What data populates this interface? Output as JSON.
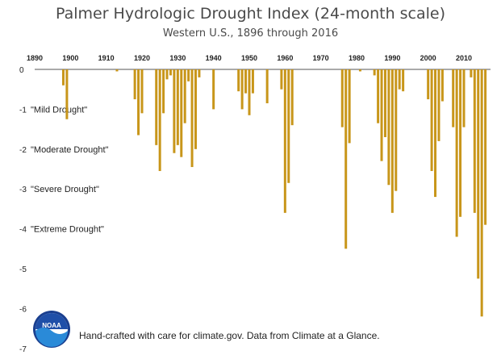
{
  "chart_data": {
    "type": "bar",
    "title": "Palmer Hydrologic Drought Index (24-month scale)",
    "subtitle": "Western U.S., 1896 through 2016",
    "xlabel": "",
    "ylabel": "",
    "xlim": [
      1890,
      2016
    ],
    "ylim": [
      -7,
      0
    ],
    "x_ticks": [
      "1890",
      "1900",
      "1910",
      "1920",
      "1930",
      "1940",
      "1950",
      "1960",
      "1970",
      "1980",
      "1990",
      "2000",
      "2010"
    ],
    "y_ticks": [
      "0",
      "-1",
      "-2",
      "-3",
      "-4",
      "-5",
      "-6",
      "-7"
    ],
    "grid": false,
    "bar_color": "#c8961a",
    "annotations": [
      {
        "text": "\"Mild Drought\"",
        "y": -1
      },
      {
        "text": "\"Moderate Drought\"",
        "y": -2
      },
      {
        "text": "\"Severe Drought\"",
        "y": -3
      },
      {
        "text": "\"Extreme Drought\"",
        "y": -4
      }
    ],
    "values": [
      {
        "x": 1898,
        "y": -0.4
      },
      {
        "x": 1899,
        "y": -1.25
      },
      {
        "x": 1913,
        "y": -0.05
      },
      {
        "x": 1918,
        "y": -0.75
      },
      {
        "x": 1919,
        "y": -1.65
      },
      {
        "x": 1920,
        "y": -1.1
      },
      {
        "x": 1924,
        "y": -1.9
      },
      {
        "x": 1925,
        "y": -2.55
      },
      {
        "x": 1926,
        "y": -1.1
      },
      {
        "x": 1927,
        "y": -0.25
      },
      {
        "x": 1928,
        "y": -0.15
      },
      {
        "x": 1929,
        "y": -2.1
      },
      {
        "x": 1930,
        "y": -1.9
      },
      {
        "x": 1931,
        "y": -2.2
      },
      {
        "x": 1932,
        "y": -1.35
      },
      {
        "x": 1933,
        "y": -0.3
      },
      {
        "x": 1934,
        "y": -2.45
      },
      {
        "x": 1935,
        "y": -2.0
      },
      {
        "x": 1936,
        "y": -0.2
      },
      {
        "x": 1940,
        "y": -1.0
      },
      {
        "x": 1947,
        "y": -0.55
      },
      {
        "x": 1948,
        "y": -1.0
      },
      {
        "x": 1949,
        "y": -0.6
      },
      {
        "x": 1950,
        "y": -1.15
      },
      {
        "x": 1951,
        "y": -0.6
      },
      {
        "x": 1955,
        "y": -0.85
      },
      {
        "x": 1959,
        "y": -0.5
      },
      {
        "x": 1960,
        "y": -3.6
      },
      {
        "x": 1961,
        "y": -2.85
      },
      {
        "x": 1962,
        "y": -1.4
      },
      {
        "x": 1976,
        "y": -1.45
      },
      {
        "x": 1977,
        "y": -4.5
      },
      {
        "x": 1978,
        "y": -1.85
      },
      {
        "x": 1981,
        "y": -0.05
      },
      {
        "x": 1985,
        "y": -0.15
      },
      {
        "x": 1986,
        "y": -1.35
      },
      {
        "x": 1987,
        "y": -2.3
      },
      {
        "x": 1988,
        "y": -1.7
      },
      {
        "x": 1989,
        "y": -2.9
      },
      {
        "x": 1990,
        "y": -3.6
      },
      {
        "x": 1991,
        "y": -3.05
      },
      {
        "x": 1992,
        "y": -0.5
      },
      {
        "x": 1993,
        "y": -0.55
      },
      {
        "x": 2000,
        "y": -0.75
      },
      {
        "x": 2001,
        "y": -2.55
      },
      {
        "x": 2002,
        "y": -3.2
      },
      {
        "x": 2003,
        "y": -1.8
      },
      {
        "x": 2004,
        "y": -0.8
      },
      {
        "x": 2007,
        "y": -1.45
      },
      {
        "x": 2008,
        "y": -4.2
      },
      {
        "x": 2009,
        "y": -3.7
      },
      {
        "x": 2010,
        "y": -1.45
      },
      {
        "x": 2012,
        "y": -0.2
      },
      {
        "x": 2013,
        "y": -3.6
      },
      {
        "x": 2014,
        "y": -5.25
      },
      {
        "x": 2015,
        "y": -6.2
      },
      {
        "x": 2016,
        "y": -3.9
      }
    ]
  },
  "footer": {
    "credit": "Hand-crafted with care for climate.gov. Data from Climate at a Glance.",
    "logo_text": "NOAA"
  }
}
